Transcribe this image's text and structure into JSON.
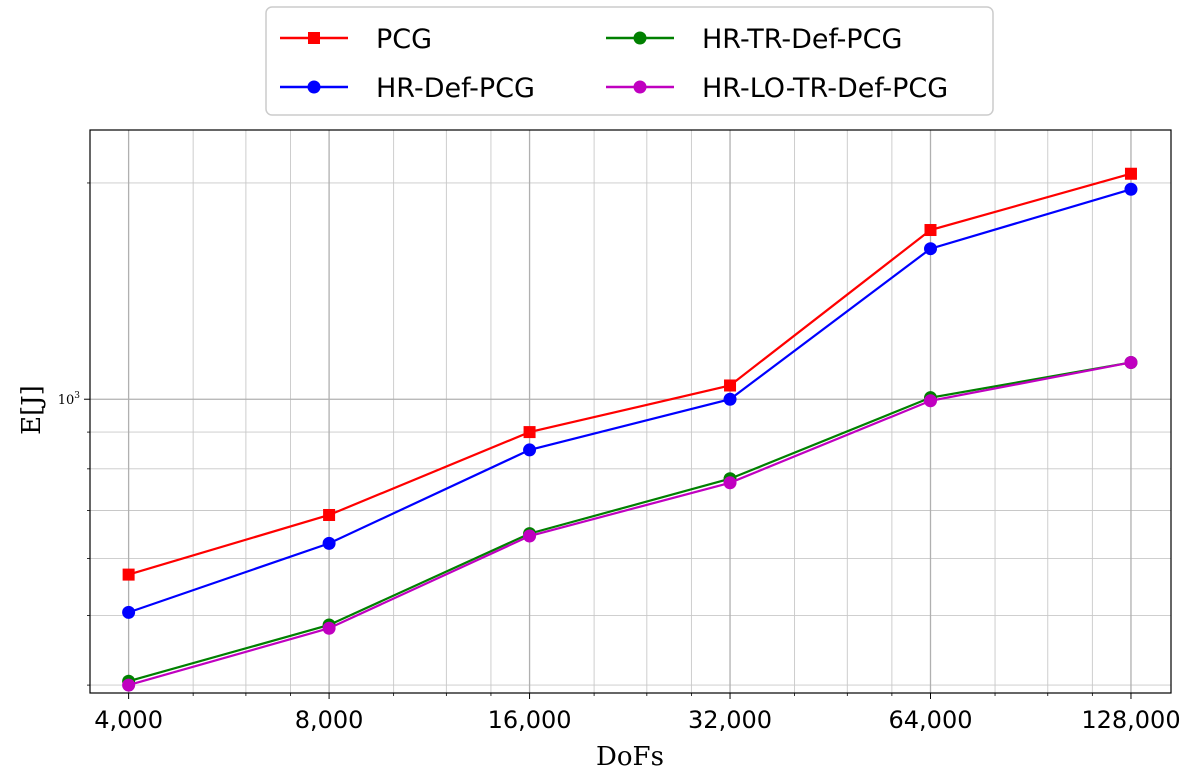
{
  "chart_data": {
    "type": "line",
    "xlabel": "DoFs",
    "ylabel": "E[J]",
    "x": [
      4000,
      8000,
      16000,
      32000,
      64000,
      128000
    ],
    "x_tick_labels": [
      "4,000",
      "8,000",
      "16,000",
      "32,000",
      "64,000",
      "128,000"
    ],
    "y_tick_labels": [
      "10^3"
    ],
    "x_scale": "log2",
    "y_scale": "log",
    "xlim": [
      3500,
      147000
    ],
    "ylim": [
      390,
      2370
    ],
    "grid": true,
    "legend_position": "top-center, outside plot",
    "series": [
      {
        "name": "PCG",
        "color": "#ff0000",
        "marker": "square",
        "values": [
          570,
          690,
          900,
          1045,
          1720,
          2060
        ]
      },
      {
        "name": "HR-Def-PCG",
        "color": "#0000ff",
        "marker": "circle",
        "values": [
          505,
          630,
          850,
          1000,
          1620,
          1960
        ]
      },
      {
        "name": "HR-TR-Def-PCG",
        "color": "#008000",
        "marker": "circle",
        "values": [
          405,
          485,
          650,
          775,
          1005,
          1125
        ]
      },
      {
        "name": "HR-LO-TR-Def-PCG",
        "color": "#c000c0",
        "marker": "circle",
        "values": [
          400,
          480,
          645,
          765,
          995,
          1125
        ]
      }
    ]
  }
}
